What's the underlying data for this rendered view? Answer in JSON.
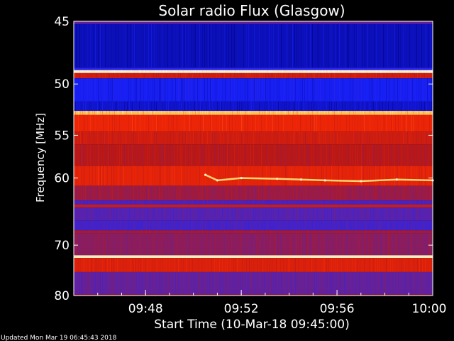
{
  "chart_data": {
    "type": "heatmap",
    "title": "Solar radio Flux (Glasgow)",
    "xlabel": "Start Time (10-Mar-18 09:45:00)",
    "ylabel": "Frequency [MHz]",
    "x_range_minutes": [
      0,
      15
    ],
    "x_ticks": [
      {
        "minute": 3,
        "label": "09:48"
      },
      {
        "minute": 7,
        "label": "09:52"
      },
      {
        "minute": 11,
        "label": "09:56"
      },
      {
        "minute": 15,
        "label": "10:00"
      }
    ],
    "y_range_mhz": [
      45,
      80
    ],
    "y_reciprocal": true,
    "y_ticks": [
      45,
      50,
      55,
      60,
      70,
      80
    ],
    "colormap": [
      "#00007a",
      "#1a22ff",
      "#5a22aa",
      "#b81818",
      "#ff2a00",
      "#ffd060",
      "#ffffff"
    ],
    "bands": [
      {
        "from": 45.0,
        "to": 45.2,
        "level": 0.35
      },
      {
        "from": 45.2,
        "to": 48.6,
        "level": 0.08
      },
      {
        "from": 48.6,
        "to": 48.8,
        "level": 0.2
      },
      {
        "from": 48.8,
        "to": 49.05,
        "level": 0.95
      },
      {
        "from": 49.05,
        "to": 49.5,
        "level": 0.55
      },
      {
        "from": 49.5,
        "to": 51.6,
        "level": 0.15
      },
      {
        "from": 51.6,
        "to": 52.5,
        "level": 0.1
      },
      {
        "from": 52.5,
        "to": 52.9,
        "level": 0.82
      },
      {
        "from": 52.9,
        "to": 54.6,
        "level": 0.62
      },
      {
        "from": 54.6,
        "to": 56.0,
        "level": 0.55
      },
      {
        "from": 56.0,
        "to": 58.5,
        "level": 0.5
      },
      {
        "from": 58.5,
        "to": 61.0,
        "level": 0.6
      },
      {
        "from": 61.0,
        "to": 63.0,
        "level": 0.45
      },
      {
        "from": 63.0,
        "to": 63.6,
        "level": 0.3
      },
      {
        "from": 63.6,
        "to": 64.0,
        "level": 0.55
      },
      {
        "from": 64.0,
        "to": 66.0,
        "level": 0.32
      },
      {
        "from": 66.0,
        "to": 67.5,
        "level": 0.28
      },
      {
        "from": 67.5,
        "to": 68.0,
        "level": 0.45
      },
      {
        "from": 68.0,
        "to": 71.8,
        "level": 0.42
      },
      {
        "from": 71.8,
        "to": 72.3,
        "level": 0.93
      },
      {
        "from": 72.3,
        "to": 75.0,
        "level": 0.58
      },
      {
        "from": 75.0,
        "to": 79.8,
        "level": 0.35
      },
      {
        "from": 79.8,
        "to": 80.0,
        "level": 0.55
      }
    ],
    "emission_trace": [
      {
        "minute": 5.5,
        "mhz": 59.6
      },
      {
        "minute": 6.0,
        "mhz": 60.3
      },
      {
        "minute": 7.0,
        "mhz": 60.0
      },
      {
        "minute": 8.5,
        "mhz": 60.1
      },
      {
        "minute": 9.5,
        "mhz": 60.2
      },
      {
        "minute": 10.5,
        "mhz": 60.3
      },
      {
        "minute": 12.0,
        "mhz": 60.4
      },
      {
        "minute": 13.5,
        "mhz": 60.2
      },
      {
        "minute": 15.0,
        "mhz": 60.3
      }
    ]
  },
  "footer": "Updated Mon Mar 19 06:45:43 2018"
}
